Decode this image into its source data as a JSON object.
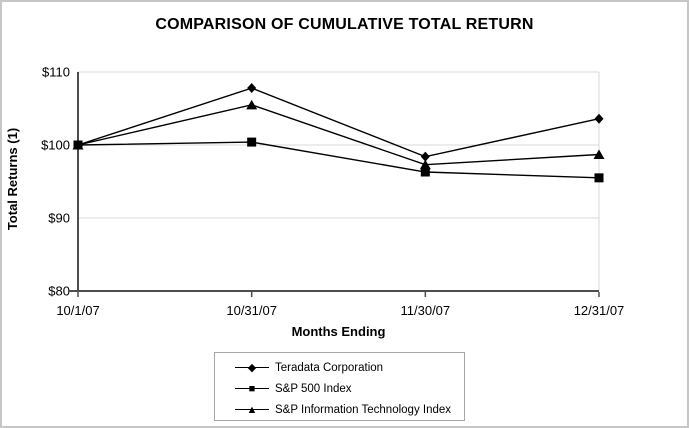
{
  "chart_data": {
    "type": "line",
    "title": "COMPARISON OF CUMULATIVE TOTAL RETURN",
    "xlabel": "Months Ending",
    "ylabel": "Total Returns (1)",
    "categories": [
      "10/1/07",
      "10/31/07",
      "11/30/07",
      "12/31/07"
    ],
    "y_axis": {
      "min": 80,
      "max": 110,
      "step": 10,
      "tick_labels": [
        "$80",
        "$90",
        "$100",
        "$110"
      ]
    },
    "ylim": [
      80,
      110
    ],
    "grid": true,
    "legend_position": "bottom-center",
    "series": [
      {
        "name": "Teradata Corporation",
        "marker": "diamond",
        "glyph": "◆",
        "color": "#000000",
        "values": [
          100,
          107.8,
          98.4,
          103.6
        ]
      },
      {
        "name": "S&P 500 Index",
        "marker": "square",
        "glyph": "■",
        "color": "#000000",
        "values": [
          100,
          100.4,
          96.3,
          95.5
        ]
      },
      {
        "name": "S&P Information Technology Index",
        "marker": "triangle",
        "glyph": "▲",
        "color": "#000000",
        "values": [
          100,
          105.5,
          97.3,
          98.7
        ]
      }
    ]
  },
  "colors": {
    "grid": "#d9d9d9",
    "axis": "#4d4d4d",
    "text": "#000000",
    "legend_border": "#a6a6a6",
    "frame_border": "#c6c6c6"
  }
}
